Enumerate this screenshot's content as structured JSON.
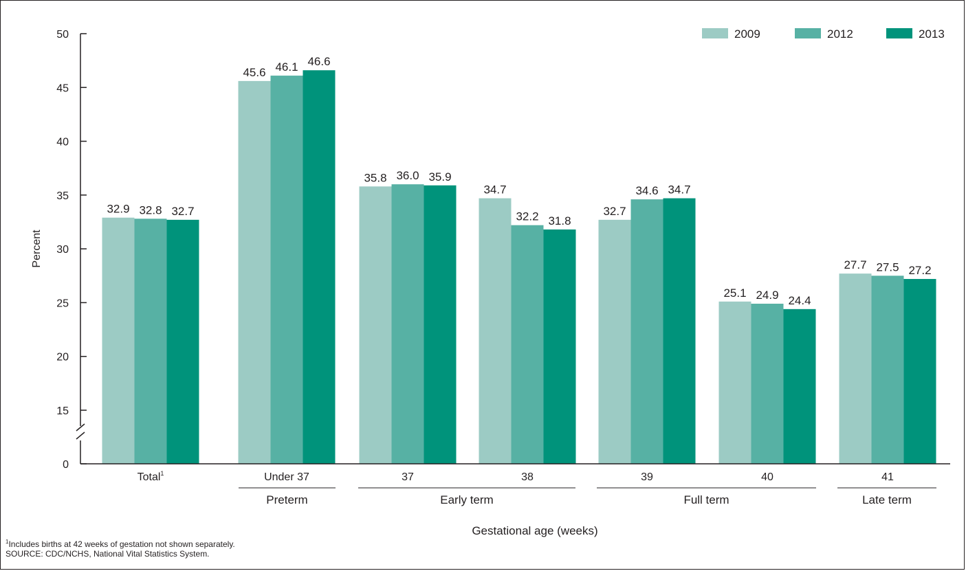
{
  "chart_data": {
    "type": "bar",
    "ylabel": "Percent",
    "xlabel": "Gestational age (weeks)",
    "ylim": [
      0,
      50
    ],
    "y_axis_break": true,
    "y_ticks": [
      0,
      15,
      20,
      25,
      30,
      35,
      40,
      45,
      50
    ],
    "categories": [
      "Total",
      "Under 37",
      "37",
      "38",
      "39",
      "40",
      "41"
    ],
    "total_footnote_marker": "1",
    "groups": [
      {
        "label": "Preterm",
        "categories": [
          "Under 37"
        ]
      },
      {
        "label": "Early term",
        "categories": [
          "37",
          "38"
        ]
      },
      {
        "label": "Full term",
        "categories": [
          "39",
          "40"
        ]
      },
      {
        "label": "Late term",
        "categories": [
          "41"
        ]
      }
    ],
    "series": [
      {
        "name": "2009",
        "color": "#9ccbc4",
        "values": [
          32.9,
          45.6,
          35.8,
          34.7,
          32.7,
          25.1,
          27.7
        ]
      },
      {
        "name": "2012",
        "color": "#57b1a4",
        "values": [
          32.8,
          46.1,
          36.0,
          32.2,
          34.6,
          24.9,
          27.5
        ]
      },
      {
        "name": "2013",
        "color": "#00937b",
        "values": [
          32.7,
          46.6,
          35.9,
          31.8,
          34.7,
          24.4,
          27.2
        ]
      }
    ],
    "legend_position": "top-right",
    "grid": false
  },
  "footnote": {
    "marker": "1",
    "text": "Includes births at 42 weeks of gestation not shown separately.",
    "source": "SOURCE: CDC/NCHS, National Vital Statistics System."
  }
}
